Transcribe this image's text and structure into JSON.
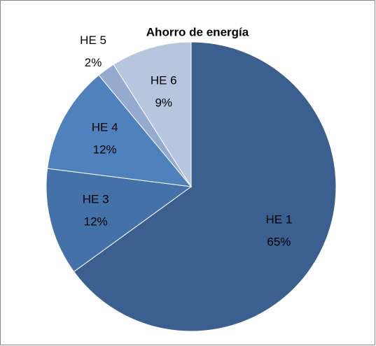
{
  "chart_data": {
    "type": "pie",
    "title": "Ahorro de energía",
    "categories": [
      "HE 1",
      "HE 3",
      "HE 4",
      "HE 5",
      "HE 6"
    ],
    "values": [
      65,
      12,
      12,
      2,
      9
    ],
    "value_labels": [
      "65%",
      "12%",
      "12%",
      "2%",
      "9%"
    ],
    "colors": [
      "#3b5f8f",
      "#4571a9",
      "#4f81bd",
      "#96aad0",
      "#b8c5df"
    ]
  }
}
